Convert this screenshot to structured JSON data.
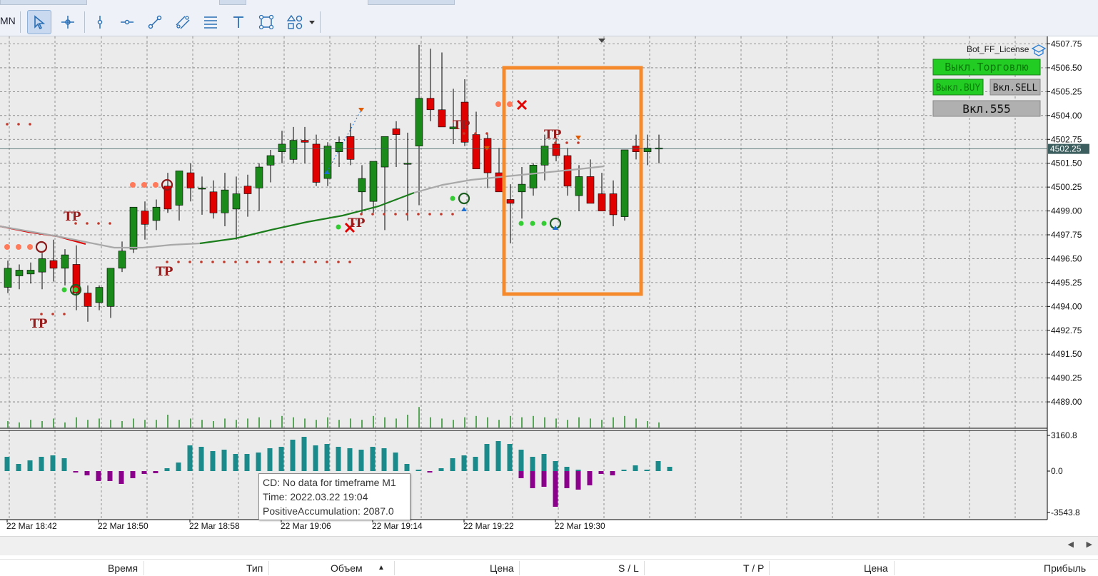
{
  "toolbar": {
    "period_label": "MN",
    "tools": [
      {
        "name": "cursor",
        "icon": "cursor-icon",
        "active": true
      },
      {
        "name": "crosshair",
        "icon": "crosshair-icon",
        "active": false
      },
      {
        "name": "vertical-line",
        "icon": "vertical-line-icon",
        "active": false
      },
      {
        "name": "horizontal-line",
        "icon": "horizontal-line-icon",
        "active": false
      },
      {
        "name": "trend-line",
        "icon": "trend-line-icon",
        "active": false
      },
      {
        "name": "channel",
        "icon": "channel-icon",
        "active": false
      },
      {
        "name": "fibonacci",
        "icon": "fibonacci-icon",
        "active": false
      },
      {
        "name": "text",
        "icon": "text-icon",
        "active": false
      },
      {
        "name": "shapes",
        "icon": "shapes-icon",
        "active": false
      },
      {
        "name": "more-objects",
        "icon": "objects-dropdown-icon",
        "active": false
      }
    ]
  },
  "panel": {
    "title": "Bot_FF_License",
    "btn_trading": "Выкл.Торговлю",
    "btn_buy": "Выкл.BUY",
    "btn_sell": "Вкл.SELL",
    "btn_555": "Вкл.555",
    "green": "#22cc22",
    "grey": "#b0b0b0"
  },
  "price_axis": {
    "labels": [
      "4507.75",
      "4506.50",
      "4505.25",
      "4504.00",
      "4502.75",
      "4501.50",
      "4500.25",
      "4499.00",
      "4497.75",
      "4496.50",
      "4495.25",
      "4494.00",
      "4492.75",
      "4491.50",
      "4490.25",
      "4489.00"
    ],
    "current_price": "4502.25"
  },
  "indicator_axis": {
    "labels": [
      "3160.8",
      "0.0",
      "-3543.8"
    ]
  },
  "time_axis": {
    "labels": [
      "22 Mar 18:42",
      "22 Mar 18:50",
      "22 Mar 18:58",
      "22 Mar 19:06",
      "22 Mar 19:14",
      "22 Mar 19:22",
      "22 Mar 19:30"
    ]
  },
  "chart_markers": {
    "tp_label": "TP"
  },
  "tooltip": {
    "line1": "CD: No data for timeframe M1",
    "line2": "Time: 2022.03.22 19:04",
    "line3": "PositiveAccumulation: 2087.0"
  },
  "table_columns": [
    "Время",
    "Тип",
    "Объем",
    "Цена",
    "S / L",
    "T / P",
    "Цена",
    "Прибыль"
  ],
  "colors": {
    "bull": "#1a8a1a",
    "bear": "#e00000",
    "highlight_box": "#f58a2c",
    "hist_positive": "#1b8a8a",
    "hist_negative": "#8a008a",
    "chart_bg": "#ebebeb"
  }
}
